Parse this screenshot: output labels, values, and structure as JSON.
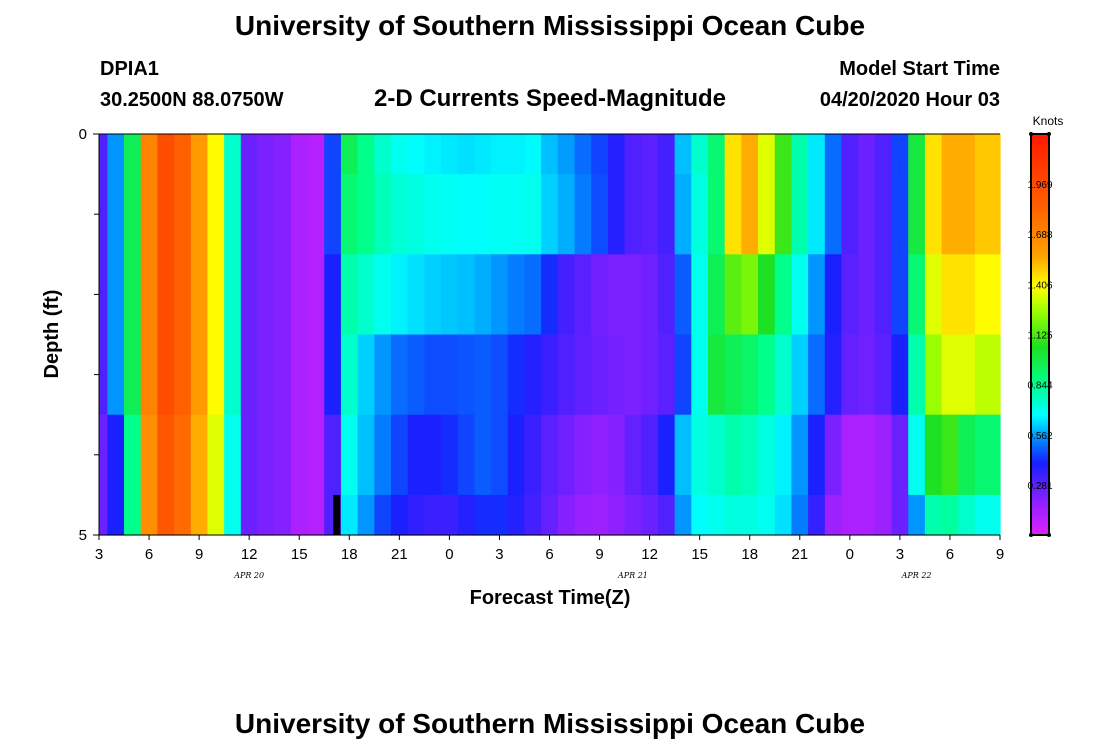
{
  "page": {
    "title_top": "University of Southern Mississippi Ocean Cube",
    "title_bottom": "University of Southern Mississippi Ocean Cube",
    "station_id": "DPIA1",
    "station_coords": "30.2500N 88.0750W",
    "plot_title": "2-D Currents Speed-Magnitude",
    "model_start_label": "Model Start Time",
    "model_start_value": "04/20/2020 Hour 03"
  },
  "chart_data": {
    "type": "heatmap",
    "title": "2-D Currents Speed-Magnitude",
    "xlabel": "Forecast Time(Z)",
    "ylabel": "Depth (ft)",
    "xlim": [
      0,
      54
    ],
    "ylim": [
      0,
      5
    ],
    "x_tick_positions": [
      0,
      3,
      6,
      9,
      12,
      15,
      18,
      21,
      24,
      27,
      30,
      33,
      36,
      39,
      42,
      45,
      48,
      51,
      54
    ],
    "x_tick_labels": [
      "3",
      "6",
      "9",
      "12",
      "15",
      "18",
      "21",
      "0",
      "3",
      "6",
      "9",
      "12",
      "15",
      "18",
      "21",
      "0",
      "3",
      "6",
      "9"
    ],
    "y_tick_labels": [
      {
        "value": 0,
        "label": "0"
      },
      {
        "value": 5,
        "label": "5"
      }
    ],
    "y_minor_ticks": [
      1,
      2,
      3,
      4
    ],
    "date_labels": [
      {
        "x": 9,
        "label": "APR 20"
      },
      {
        "x": 32,
        "label": "APR 21"
      },
      {
        "x": 49,
        "label": "APR 22"
      }
    ],
    "colorbar": {
      "units": "Knots",
      "min": 0.0,
      "max": 2.25,
      "ticks": [
        "0.281",
        "0.562",
        "0.844",
        "1.125",
        "1.406",
        "1.688",
        "1.969"
      ]
    },
    "marker": {
      "x": 14.25,
      "depth_from": 4.5,
      "depth_to": 5.0,
      "color": "#000000"
    },
    "layer_depths": [
      0.25,
      1.0,
      2.0,
      3.0,
      4.0,
      4.75
    ],
    "layer_bounds": [
      [
        0,
        0.5
      ],
      [
        0.5,
        1.5
      ],
      [
        1.5,
        2.5
      ],
      [
        2.5,
        3.5
      ],
      [
        3.5,
        4.5
      ],
      [
        4.5,
        5.0
      ]
    ],
    "time_keys": [
      0,
      1,
      2,
      3,
      4,
      5,
      6,
      7,
      8,
      9,
      10,
      11,
      12,
      13,
      14,
      15,
      16,
      17,
      18,
      19,
      20,
      21,
      22,
      23,
      24,
      25,
      26,
      27,
      28,
      29,
      30,
      31,
      32,
      33,
      34,
      35,
      36,
      37,
      38,
      39,
      40,
      41,
      42,
      43,
      44,
      45,
      46,
      47,
      48,
      49,
      50,
      51,
      52,
      53,
      54
    ],
    "speed_layers": [
      [
        0.3,
        0.55,
        0.95,
        1.7,
        1.95,
        1.85,
        1.6,
        1.4,
        0.75,
        0.25,
        0.22,
        0.2,
        0.12,
        0.1,
        0.45,
        0.95,
        0.85,
        0.75,
        0.7,
        0.68,
        0.66,
        0.65,
        0.64,
        0.65,
        0.66,
        0.66,
        0.67,
        0.6,
        0.56,
        0.5,
        0.45,
        0.38,
        0.3,
        0.28,
        0.32,
        0.6,
        0.75,
        0.9,
        1.45,
        1.55,
        1.35,
        1.1,
        0.8,
        0.65,
        0.5,
        0.3,
        0.25,
        0.3,
        0.45,
        1.0,
        1.45,
        1.55,
        1.55,
        1.5,
        1.5
      ],
      [
        0.3,
        0.55,
        0.95,
        1.7,
        1.95,
        1.85,
        1.6,
        1.4,
        0.75,
        0.25,
        0.22,
        0.2,
        0.12,
        0.1,
        0.45,
        0.9,
        0.85,
        0.78,
        0.74,
        0.72,
        0.7,
        0.69,
        0.68,
        0.68,
        0.69,
        0.69,
        0.7,
        0.62,
        0.58,
        0.52,
        0.46,
        0.38,
        0.3,
        0.28,
        0.32,
        0.58,
        0.72,
        0.9,
        1.45,
        1.55,
        1.35,
        1.1,
        0.8,
        0.65,
        0.5,
        0.3,
        0.25,
        0.3,
        0.45,
        1.0,
        1.45,
        1.55,
        1.55,
        1.5,
        1.5
      ],
      [
        0.3,
        0.55,
        0.95,
        1.7,
        1.95,
        1.85,
        1.6,
        1.4,
        0.75,
        0.25,
        0.22,
        0.2,
        0.12,
        0.1,
        0.4,
        0.8,
        0.75,
        0.7,
        0.66,
        0.64,
        0.62,
        0.61,
        0.6,
        0.58,
        0.55,
        0.52,
        0.5,
        0.42,
        0.32,
        0.28,
        0.24,
        0.22,
        0.22,
        0.24,
        0.3,
        0.48,
        0.7,
        0.95,
        1.15,
        1.2,
        1.05,
        0.85,
        0.7,
        0.55,
        0.4,
        0.28,
        0.25,
        0.3,
        0.45,
        0.9,
        1.35,
        1.45,
        1.45,
        1.4,
        1.4
      ],
      [
        0.3,
        0.55,
        0.95,
        1.7,
        1.95,
        1.85,
        1.6,
        1.4,
        0.75,
        0.25,
        0.22,
        0.2,
        0.12,
        0.1,
        0.4,
        0.75,
        0.62,
        0.55,
        0.5,
        0.48,
        0.46,
        0.46,
        0.47,
        0.48,
        0.46,
        0.42,
        0.38,
        0.34,
        0.3,
        0.27,
        0.25,
        0.23,
        0.22,
        0.24,
        0.28,
        0.45,
        0.7,
        1.0,
        0.95,
        0.92,
        0.85,
        0.75,
        0.62,
        0.5,
        0.38,
        0.26,
        0.24,
        0.28,
        0.4,
        0.8,
        1.25,
        1.35,
        1.35,
        1.3,
        1.3
      ],
      [
        0.25,
        0.4,
        0.85,
        1.65,
        1.9,
        1.8,
        1.55,
        1.35,
        0.7,
        0.25,
        0.22,
        0.2,
        0.12,
        0.1,
        0.3,
        0.7,
        0.6,
        0.52,
        0.45,
        0.4,
        0.4,
        0.42,
        0.45,
        0.48,
        0.46,
        0.4,
        0.34,
        0.28,
        0.24,
        0.2,
        0.18,
        0.2,
        0.26,
        0.3,
        0.4,
        0.6,
        0.72,
        0.75,
        0.8,
        0.78,
        0.72,
        0.66,
        0.55,
        0.4,
        0.22,
        0.12,
        0.12,
        0.15,
        0.25,
        0.7,
        1.05,
        1.1,
        0.95,
        0.9,
        0.9
      ],
      [
        0.25,
        0.4,
        0.85,
        1.65,
        1.9,
        1.8,
        1.55,
        1.35,
        0.7,
        0.25,
        0.22,
        0.2,
        0.12,
        0.1,
        0.3,
        0.65,
        0.55,
        0.45,
        0.4,
        0.36,
        0.34,
        0.34,
        0.38,
        0.42,
        0.42,
        0.38,
        0.32,
        0.26,
        0.2,
        0.16,
        0.15,
        0.18,
        0.22,
        0.25,
        0.3,
        0.55,
        0.68,
        0.7,
        0.72,
        0.72,
        0.7,
        0.64,
        0.52,
        0.35,
        0.15,
        0.12,
        0.12,
        0.15,
        0.25,
        0.55,
        0.8,
        0.82,
        0.75,
        0.7,
        0.7
      ]
    ]
  }
}
